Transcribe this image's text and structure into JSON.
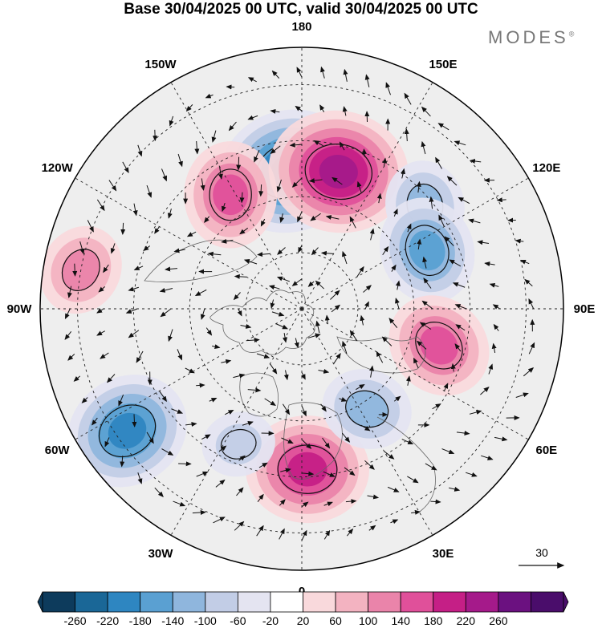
{
  "title": "Base 30/04/2025 00 UTC, valid 30/04/2025 00 UTC",
  "logo": {
    "text": "MODES",
    "mark": "®"
  },
  "map": {
    "projection": "polar-stereographic-north",
    "lon_labels": [
      "180",
      "150E",
      "120E",
      "90E",
      "60E",
      "30E",
      "0",
      "30W",
      "60W",
      "90W",
      "120W",
      "150W"
    ],
    "anomaly_centers": [
      {
        "lon": -175,
        "lat": 53,
        "value": -240
      },
      {
        "lon": 165,
        "lat": 52,
        "value": 230
      },
      {
        "lon": -148,
        "lat": 54,
        "value": 160
      },
      {
        "lon": 130,
        "lat": 47,
        "value": -130
      },
      {
        "lon": 115,
        "lat": 53,
        "value": -170
      },
      {
        "lon": 75,
        "lat": 52,
        "value": 170
      },
      {
        "lon": -100,
        "lat": 30,
        "value": 110
      },
      {
        "lon": -55,
        "lat": 33,
        "value": -200
      },
      {
        "lon": 2,
        "lat": 47,
        "value": 180
      },
      {
        "lon": 33,
        "lat": 58,
        "value": -110
      },
      {
        "lon": -25,
        "lat": 50,
        "value": -90
      }
    ]
  },
  "vector_key": {
    "value": "30"
  },
  "colorbar": {
    "colors": [
      "#0d3b5c",
      "#1a6797",
      "#2e86c1",
      "#5aa0d2",
      "#8fb6dd",
      "#c2cde6",
      "#e4e4f1",
      "#ffffff",
      "#f9d9dc",
      "#f3b3c1",
      "#ea84aa",
      "#e0509a",
      "#c51f86",
      "#a51a8a",
      "#6b1180",
      "#4a0d6b"
    ],
    "labels": [
      "-260",
      "-220",
      "-180",
      "-140",
      "-100",
      "-60",
      "-20",
      "20",
      "60",
      "100",
      "140",
      "180",
      "220",
      "260"
    ]
  }
}
